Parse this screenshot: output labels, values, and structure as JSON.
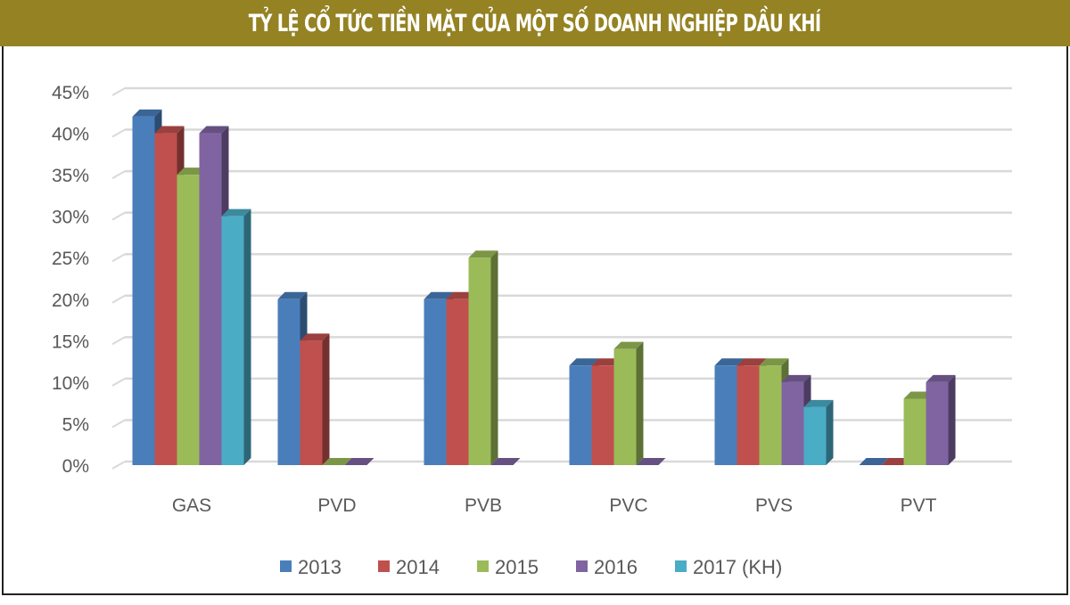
{
  "title": "TỶ LỆ CỔ TỨC TIỀN MẶT CỦA MỘT SỐ DOANH NGHIỆP DẦU KHÍ",
  "chart_data": {
    "type": "bar",
    "title": "TỶ LỆ CỔ TỨC TIỀN MẶT CỦA MỘT SỐ DOANH NGHIỆP DẦU KHÍ",
    "xlabel": "",
    "ylabel": "",
    "ylim": [
      0,
      45
    ],
    "yticks": [
      "0%",
      "5%",
      "10%",
      "15%",
      "20%",
      "25%",
      "30%",
      "35%",
      "40%",
      "45%"
    ],
    "categories": [
      "GAS",
      "PVD",
      "PVB",
      "PVC",
      "PVS",
      "PVT"
    ],
    "grid": true,
    "legend": "bottom",
    "series": [
      {
        "name": "2013",
        "color": "#4a7ebb",
        "values": [
          42,
          20,
          20,
          12,
          12,
          0
        ]
      },
      {
        "name": "2014",
        "color": "#c0504d",
        "values": [
          40,
          15,
          20,
          12,
          12,
          0
        ]
      },
      {
        "name": "2015",
        "color": "#9bbb59",
        "values": [
          35,
          0,
          25,
          14,
          12,
          8
        ]
      },
      {
        "name": "2016",
        "color": "#8064a2",
        "values": [
          40,
          0,
          0,
          0,
          10,
          10
        ]
      },
      {
        "name": "2017 (KH)",
        "color": "#4bacc6",
        "values": [
          30,
          null,
          null,
          null,
          7,
          null
        ]
      }
    ]
  }
}
